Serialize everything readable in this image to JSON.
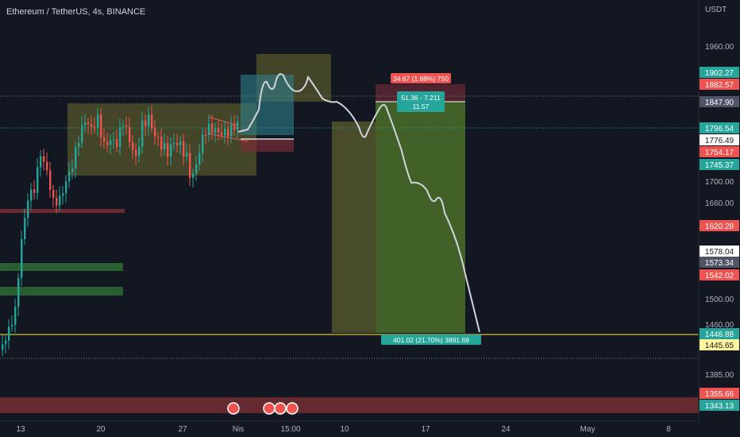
{
  "header": {
    "title": "Ethereum / TetherUS, 4s, BINANCE"
  },
  "chart_data": {
    "type": "candlestick",
    "currency": "USDT",
    "yticks": [
      1960.0,
      1700.0,
      1660.0,
      1500.0,
      1460.0,
      1385.0
    ],
    "xticks": [
      "13",
      "20",
      "27",
      "Nis",
      "15:00",
      "10",
      "17",
      "24",
      "May",
      "8"
    ],
    "price_tags": [
      {
        "value": "1902.27",
        "color": "#26a69a",
        "text_color": "#ffffff"
      },
      {
        "value": "1882.57",
        "color": "#ef5350",
        "text_color": "#ffffff"
      },
      {
        "value": "1847.90",
        "color": "#4f5566",
        "text_color": "#ffffff"
      },
      {
        "value": "1796.54",
        "color": "#26a69a",
        "text_color": "#ffffff"
      },
      {
        "value": "1776.49",
        "color": "#ffffff",
        "text_color": "#131722"
      },
      {
        "value": "1754.17",
        "color": "#ef5350",
        "text_color": "#ffffff"
      },
      {
        "value": "1745.37",
        "color": "#26a69a",
        "text_color": "#ffffff"
      },
      {
        "value": "1620.28",
        "color": "#ef5350",
        "text_color": "#ffffff"
      },
      {
        "value": "1578.04",
        "color": "#ffffff",
        "text_color": "#131722"
      },
      {
        "value": "1573.34",
        "color": "#4f5566",
        "text_color": "#ffffff"
      },
      {
        "value": "1542.02",
        "color": "#ef5350",
        "text_color": "#ffffff"
      },
      {
        "value": "1446.88",
        "color": "#26a69a",
        "text_color": "#ffffff"
      },
      {
        "value": "1445.65",
        "color": "#fff59d",
        "text_color": "#131722"
      },
      {
        "value": "1355.66",
        "color": "#ef5350",
        "text_color": "#ffffff"
      },
      {
        "value": "1343.13",
        "color": "#26a69a",
        "text_color": "#ffffff"
      }
    ],
    "annotations": {
      "risk_label": "34.67 (1.88%) 750",
      "entry_label_line1": "51.36 - 7.211",
      "entry_label_line2": "11.57",
      "target_label": "401.02 (21.70%) 3891.69"
    },
    "colors": {
      "up": "#26a69a",
      "down": "#ef5350",
      "target_line": "#ffeb3b",
      "forecast": "#d1d4dc"
    }
  }
}
